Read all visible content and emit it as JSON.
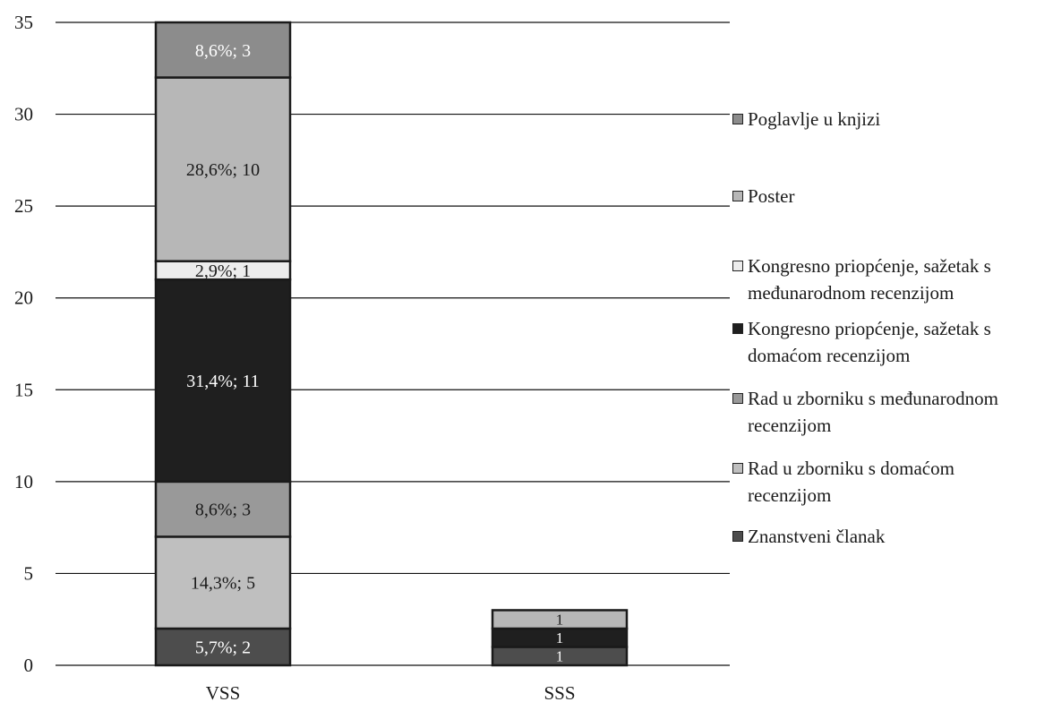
{
  "chart_data": {
    "type": "bar",
    "stacked": true,
    "title": "",
    "xlabel": "",
    "ylabel": "",
    "ylim": [
      0,
      35
    ],
    "yticks": [
      0,
      5,
      10,
      15,
      20,
      25,
      30,
      35
    ],
    "grid": true,
    "legend_position": "right",
    "categories": [
      "VSS",
      "SSS"
    ],
    "series": [
      {
        "name": "Znanstveni članak",
        "color": "#4d4d4d",
        "label_color": "#ffffff",
        "values": [
          2,
          1
        ],
        "labels": [
          "5,7%; 2",
          "1"
        ]
      },
      {
        "name": "Rad u zborniku s domaćom recenzijom",
        "color": "#bfbfbf",
        "label_color": "#1a1a1a",
        "values": [
          5,
          0
        ],
        "labels": [
          "14,3%; 5",
          ""
        ]
      },
      {
        "name": "Rad u zborniku s međunarodnom recenzijom",
        "color": "#999999",
        "label_color": "#1a1a1a",
        "values": [
          3,
          0
        ],
        "labels": [
          "8,6%; 3",
          ""
        ]
      },
      {
        "name": "Kongresno priopćenje, sažetak s domaćom recenzijom",
        "color": "#1f1f1f",
        "label_color": "#ffffff",
        "values": [
          11,
          1
        ],
        "labels": [
          "31,4%; 11",
          "1"
        ]
      },
      {
        "name": "Kongresno priopćenje, sažetak s međunarodnom recenzijom",
        "color": "#ececec",
        "label_color": "#1a1a1a",
        "values": [
          1,
          0
        ],
        "labels": [
          "2,9%; 1",
          ""
        ]
      },
      {
        "name": "Poster",
        "color": "#b7b7b7",
        "label_color": "#1a1a1a",
        "values": [
          10,
          1
        ],
        "labels": [
          "28,6%; 10",
          "1"
        ]
      },
      {
        "name": "Poglavlje u knjizi",
        "color": "#8c8c8c",
        "label_color": "#ffffff",
        "values": [
          3,
          0
        ],
        "labels": [
          "8,6%; 3",
          ""
        ]
      }
    ]
  },
  "legend": {
    "items": [
      {
        "label": "Poglavlje u knjizi",
        "color": "#8c8c8c"
      },
      {
        "label": "Poster",
        "color": "#b7b7b7"
      },
      {
        "label": "Kongresno priopćenje, sažetak s\nmeđunarodnom recenzijom",
        "color": "#ececec"
      },
      {
        "label": "Kongresno priopćenje, sažetak s\ndomaćom recenzijom",
        "color": "#1f1f1f"
      },
      {
        "label": "Rad u zborniku s međunarodnom\nrecenzijom",
        "color": "#999999"
      },
      {
        "label": "Rad u zborniku s domaćom\nrecenzijom",
        "color": "#bfbfbf"
      },
      {
        "label": "Znanstveni članak",
        "color": "#4d4d4d"
      }
    ]
  }
}
